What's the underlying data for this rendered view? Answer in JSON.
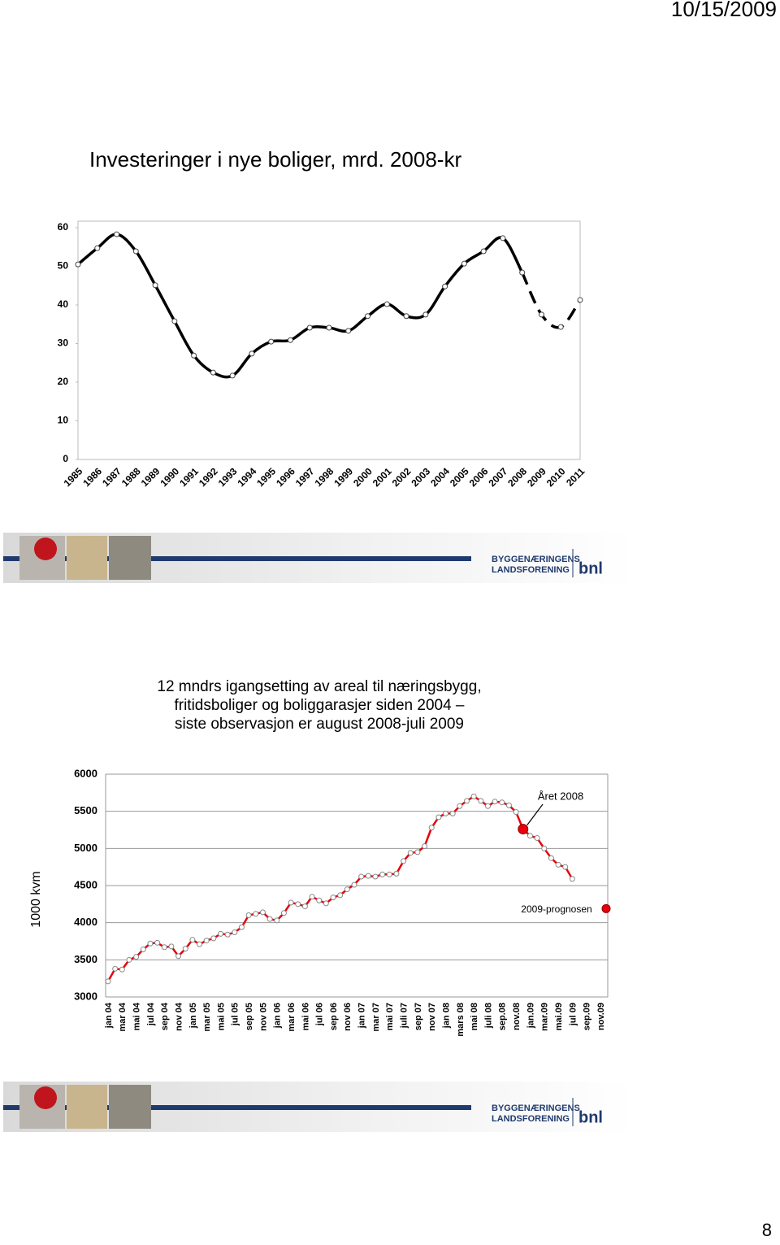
{
  "header": {
    "date": "10/15/2009"
  },
  "banner": {
    "line1": "BYGGENÆRINGENS",
    "line2": "LANDSFORENING",
    "logo": "bnl"
  },
  "page_number": "8",
  "chart_data": [
    {
      "type": "line",
      "title": "Investeringer i nye boliger, mrd. 2008-kr",
      "categories": [
        "1985",
        "1986",
        "1987",
        "1988",
        "1989",
        "1990",
        "1991",
        "1992",
        "1993",
        "1994",
        "1995",
        "1996",
        "1997",
        "1998",
        "1999",
        "2000",
        "2001",
        "2002",
        "2003",
        "2004",
        "2005",
        "2006",
        "2007",
        "2008",
        "2009",
        "2010",
        "2011"
      ],
      "values": [
        50.5,
        54.7,
        58.3,
        53.9,
        45.1,
        35.8,
        26.9,
        22.5,
        21.7,
        27.4,
        30.5,
        30.9,
        34.1,
        34.1,
        33.3,
        37.1,
        40.2,
        37.1,
        37.5,
        44.8,
        50.7,
        53.9,
        57.3,
        48.4,
        37.5,
        34.3,
        41.3
      ],
      "color": "#000000",
      "dashed_from": 23,
      "ylim": [
        0,
        60
      ],
      "yticks": [
        0,
        10,
        20,
        30,
        40,
        50,
        60
      ]
    },
    {
      "type": "line",
      "title": [
        "12 mndrs igangsetting av areal til næringsbygg,",
        "fritidsboliger og boliggarasjer siden 2004 –",
        "siste observasjon er august 2008-juli 2009"
      ],
      "y_label": "1000 kvm",
      "categories": [
        "jan 04",
        null,
        "mar 04",
        null,
        "mai 04",
        null,
        "jul 04",
        null,
        "sep 04",
        null,
        "nov 04",
        null,
        "jan 05",
        null,
        "mar 05",
        null,
        "mai 05",
        null,
        "jul 05",
        null,
        "sep 05",
        null,
        "nov 05",
        null,
        "jan 06",
        null,
        "mar 06",
        null,
        "mai 06",
        null,
        "jul 06",
        null,
        "sep 06",
        null,
        "nov 06",
        null,
        "jan 07",
        null,
        "mar 07",
        null,
        "mai 07",
        null,
        "juli 07",
        null,
        "sep 07",
        null,
        "nov 07",
        null,
        "jan 08",
        null,
        "mars 08",
        null,
        "mai 08",
        null,
        "juli 08",
        null,
        "sep.08",
        null,
        "nov.08",
        null,
        "jan.09",
        null,
        "mar.09",
        null,
        "mai.09",
        null,
        "jul 09",
        null,
        "sep.09",
        null,
        "nov.09"
      ],
      "values": [
        3210,
        3380,
        3370,
        3500,
        3540,
        3640,
        3720,
        3730,
        3670,
        3680,
        3550,
        3650,
        3770,
        3710,
        3760,
        3790,
        3850,
        3840,
        3870,
        3940,
        4100,
        4120,
        4140,
        4050,
        4030,
        4130,
        4270,
        4250,
        4220,
        4350,
        4300,
        4260,
        4340,
        4370,
        4450,
        4510,
        4620,
        4630,
        4620,
        4650,
        4650,
        4660,
        4830,
        4940,
        4950,
        5030,
        5280,
        5420,
        5470,
        5470,
        5570,
        5640,
        5700,
        5640,
        5570,
        5630,
        5620,
        5580,
        5490,
        5260,
        5170,
        5140,
        5000,
        4870,
        4780,
        4750,
        4590,
        null,
        null,
        null,
        null
      ],
      "color": "#e8000b",
      "highlight_index": 59,
      "annotations": [
        {
          "text": "Året 2008"
        },
        {
          "text": "2009-prognosen",
          "value": 4190
        }
      ],
      "ylim": [
        3000,
        6000
      ],
      "yticks": [
        3000,
        3500,
        4000,
        4500,
        5000,
        5500,
        6000
      ],
      "grid": true
    }
  ]
}
